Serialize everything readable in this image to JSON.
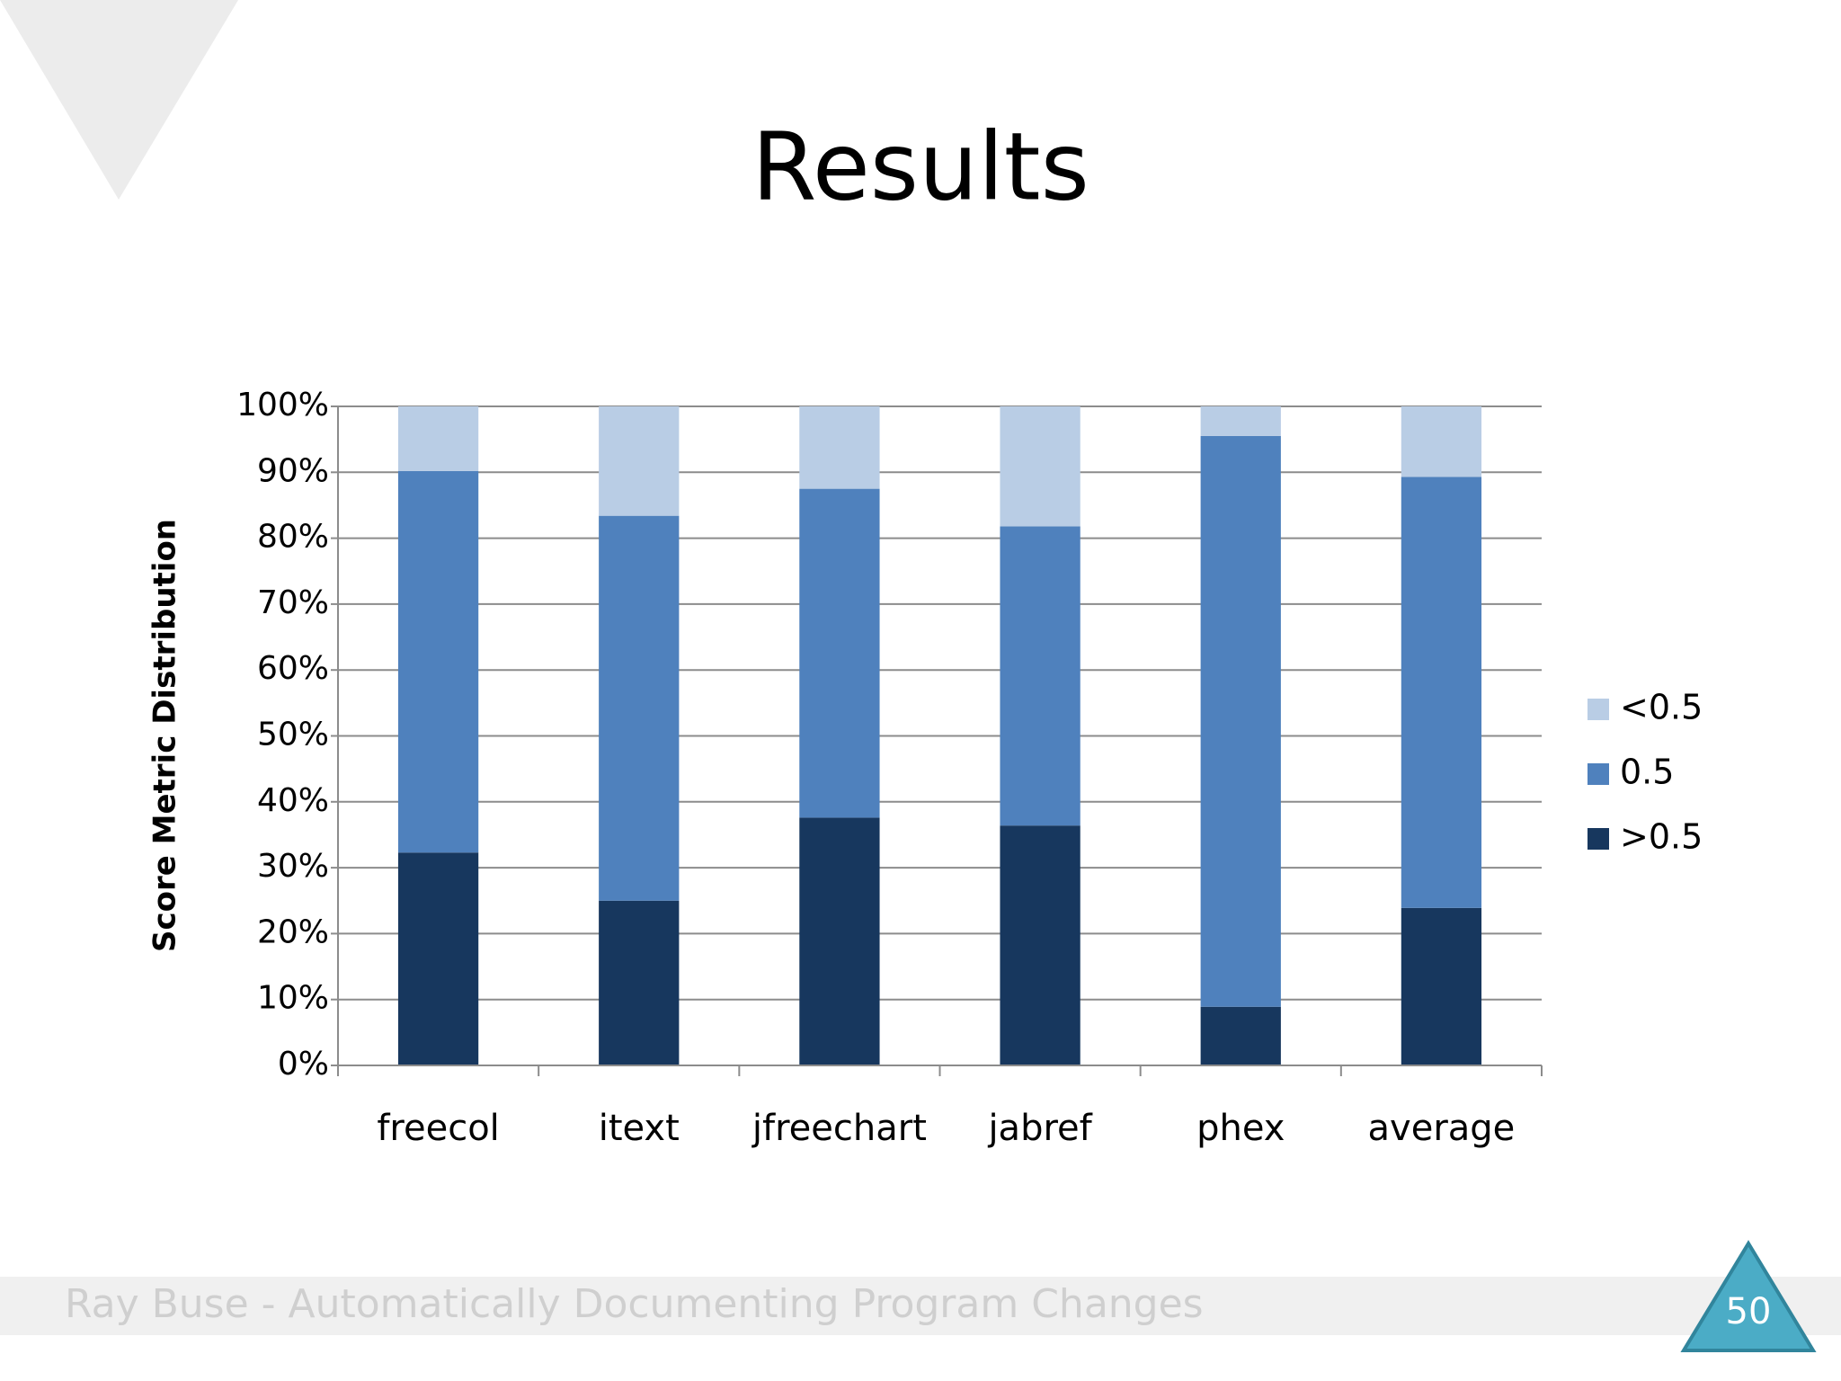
{
  "chart_data": {
    "type": "stacked_bar",
    "title": "Results",
    "y_label": "Score Metric Distribution",
    "categories": [
      "freecol",
      "itext",
      "jfreechart",
      "jabref",
      "phex",
      "average"
    ],
    "series": [
      {
        "name": ">0.5",
        "color": "#17375e",
        "values": [
          32.3,
          25.0,
          37.6,
          36.4,
          8.9,
          23.9
        ]
      },
      {
        "name": "0.5",
        "color": "#4f81bd",
        "values": [
          57.9,
          58.4,
          49.9,
          45.4,
          86.6,
          65.4
        ]
      },
      {
        "name": "<0.5",
        "color": "#b9cde5",
        "values": [
          9.8,
          16.6,
          12.5,
          18.2,
          4.5,
          10.7
        ]
      }
    ],
    "ylim": [
      0,
      100
    ],
    "yticks": [
      {
        "value": 0,
        "label": "0%"
      },
      {
        "value": 10,
        "label": "10%"
      },
      {
        "value": 20,
        "label": "20%"
      },
      {
        "value": 30,
        "label": "30%"
      },
      {
        "value": 40,
        "label": "40%"
      },
      {
        "value": 50,
        "label": "50%"
      },
      {
        "value": 60,
        "label": "60%"
      },
      {
        "value": 70,
        "label": "70%"
      },
      {
        "value": 80,
        "label": "80%"
      },
      {
        "value": 90,
        "label": "90%"
      },
      {
        "value": 100,
        "label": "100%"
      }
    ],
    "grid": true,
    "legend": "right"
  },
  "slide": {
    "footer": "Ray Buse - Automatically Documenting Program Changes",
    "page_number": "50"
  }
}
